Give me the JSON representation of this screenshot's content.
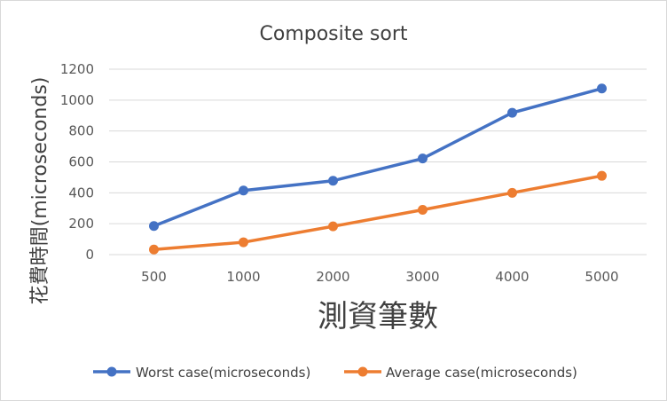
{
  "chart_data": {
    "type": "line",
    "title": "Composite sort",
    "xlabel": "測資筆數",
    "ylabel": "花費時間(microseconds)",
    "categories": [
      "500",
      "1000",
      "2000",
      "3000",
      "4000",
      "5000"
    ],
    "ylim": [
      0,
      1200
    ],
    "yticks": [
      0,
      200,
      400,
      600,
      800,
      1000,
      1200
    ],
    "grid": true,
    "legend_position": "bottom",
    "series": [
      {
        "name": "Worst case(microseconds)",
        "color": "#4472c4",
        "values": [
          185,
          415,
          478,
          622,
          918,
          1075
        ]
      },
      {
        "name": "Average case(microseconds)",
        "color": "#ed7d31",
        "values": [
          33,
          80,
          183,
          290,
          400,
          510
        ]
      }
    ]
  }
}
